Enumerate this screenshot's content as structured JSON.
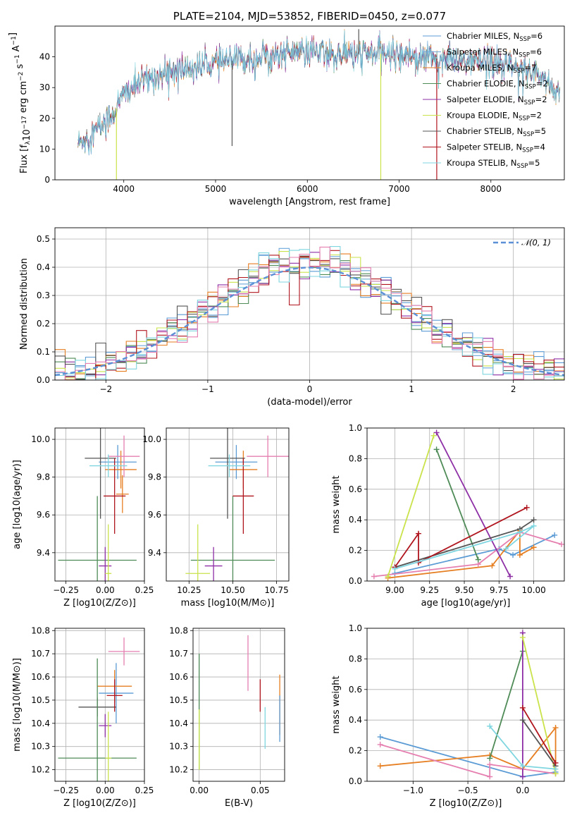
{
  "colors": {
    "chabrier_miles": "#5B9BD5",
    "salpeter_miles": "#6FA8DC",
    "kroupa_miles": "#E67E22",
    "chabrier_elodie": "#4E8B57",
    "salpeter_elodie": "#8E2FA6",
    "kroupa_elodie": "#C9E34B",
    "chabrier_stelib": "#555555",
    "salpeter_stelib": "#B0151E",
    "kroupa_stelib": "#7FD6E0",
    "pink": "#E57FB0",
    "normal": "#5B8FD6"
  },
  "chart_data": [
    {
      "id": "spectrum",
      "type": "line",
      "title": "PLATE=2104, MJD=53852, FIBERID=0450, z=0.077",
      "xlabel": "wavelength [Angstrom, rest frame]",
      "ylabel": "Flux [f_λ10^-17 erg cm^-2 s^-1 A^-1]",
      "xlim": [
        3250,
        8800
      ],
      "ylim": [
        0,
        50
      ],
      "xticks": [
        "4000",
        "5000",
        "6000",
        "7000",
        "8000"
      ],
      "yticks": [
        "0",
        "10",
        "20",
        "30",
        "40"
      ],
      "legend_position": "top-right",
      "legend": [
        {
          "label": "Chabrier MILES, N",
          "sub": "SSP",
          "val": "=6"
        },
        {
          "label": "Salpeter MILES, N",
          "sub": "SSP",
          "val": "=6"
        },
        {
          "label": "Kroupa MILES, N",
          "sub": "SSP",
          "val": "=7"
        },
        {
          "label": "Chabrier ELODIE, N",
          "sub": "SSP",
          "val": "=2"
        },
        {
          "label": "Salpeter ELODIE, N",
          "sub": "SSP",
          "val": "=2"
        },
        {
          "label": "Kroupa ELODIE, N",
          "sub": "SSP",
          "val": "=2"
        },
        {
          "label": "Chabrier STELIB, N",
          "sub": "SSP",
          "val": "=5"
        },
        {
          "label": "Salpeter STELIB, N",
          "sub": "SSP",
          "val": "=4"
        },
        {
          "label": "Kroupa STELIB, N",
          "sub": "SSP",
          "val": "=5"
        }
      ],
      "continuum": [
        [
          3500,
          12
        ],
        [
          3700,
          16
        ],
        [
          3900,
          22
        ],
        [
          4000,
          28
        ],
        [
          4200,
          32
        ],
        [
          4500,
          35
        ],
        [
          5000,
          38
        ],
        [
          5500,
          40
        ],
        [
          5900,
          42
        ],
        [
          6200,
          41
        ],
        [
          6500,
          41
        ],
        [
          7000,
          41
        ],
        [
          7300,
          40
        ],
        [
          7500,
          39
        ],
        [
          8000,
          38
        ],
        [
          8500,
          35
        ],
        [
          8750,
          28
        ]
      ],
      "features": [
        {
          "x": 3920,
          "y": 0
        },
        {
          "x": 5180,
          "y": 11
        },
        {
          "x": 6560,
          "y": 49
        },
        {
          "x": 6800,
          "y": 0
        },
        {
          "x": 7410,
          "y": 0
        }
      ]
    },
    {
      "id": "residuals",
      "type": "line",
      "xlabel": "(data-model)/error",
      "ylabel": "Normed distribution",
      "xlim": [
        -2.5,
        2.5
      ],
      "ylim": [
        0,
        0.54
      ],
      "xticks": [
        "−2",
        "−1",
        "0",
        "1",
        "2"
      ],
      "yticks": [
        "0.0",
        "0.1",
        "0.2",
        "0.3",
        "0.4",
        "0.5"
      ],
      "legend": "𝒩(0, 1)"
    },
    {
      "id": "age_vs_z",
      "type": "scatter",
      "xlabel": "Z [log10(Z/Z⊙)]",
      "ylabel": "age [log10(age/yr)]",
      "xlim": [
        -0.32,
        0.25
      ],
      "ylim": [
        9.25,
        10.06
      ],
      "xticks": [
        "−0.25",
        "0.00",
        "0.25"
      ],
      "yticks": [
        "9.4",
        "9.6",
        "9.8",
        "10.0"
      ],
      "points": [
        {
          "series": "chabrier_miles",
          "x": 0.08,
          "y": 9.88,
          "xerr": 0.12,
          "yerr": 0.09
        },
        {
          "series": "kroupa_miles",
          "x": 0.1,
          "y": 9.84,
          "xerr": 0.1,
          "yerr": 0.1
        },
        {
          "series": "kroupa_miles",
          "x": 0.11,
          "y": 9.71,
          "xerr": 0.04,
          "yerr": 0.1
        },
        {
          "series": "pink",
          "x": 0.12,
          "y": 9.91,
          "xerr": 0.1,
          "yerr": 0.11
        },
        {
          "series": "chabrier_elodie",
          "x": -0.05,
          "y": 9.36,
          "xerr": 0.25,
          "yerr": 0.34
        },
        {
          "series": "salpeter_elodie",
          "x": 0.0,
          "y": 9.33,
          "xerr": 0.04,
          "yerr": 0.1
        },
        {
          "series": "kroupa_elodie",
          "x": 0.02,
          "y": 9.29,
          "xerr": 0.02,
          "yerr": 0.26
        },
        {
          "series": "chabrier_stelib",
          "x": -0.03,
          "y": 9.9,
          "xerr": 0.1,
          "yerr": 0.32
        },
        {
          "series": "salpeter_stelib",
          "x": 0.06,
          "y": 9.7,
          "xerr": 0.07,
          "yerr": 0.2
        },
        {
          "series": "kroupa_stelib",
          "x": 0.02,
          "y": 9.86,
          "xerr": 0.12,
          "yerr": 0.06
        }
      ]
    },
    {
      "id": "age_vs_mass",
      "type": "scatter",
      "xlabel": "mass [log10(M/M⊙)]",
      "xlim": [
        10.12,
        10.82
      ],
      "ylim": [
        9.25,
        10.06
      ],
      "xticks": [
        "10.25",
        "10.50",
        "10.75"
      ],
      "yticks": [
        "9.4",
        "9.6",
        "9.8",
        "10.0"
      ],
      "points": [
        {
          "series": "chabrier_miles",
          "x": 10.52,
          "y": 9.88,
          "xerr": 0.12,
          "yerr": 0.09
        },
        {
          "series": "kroupa_miles",
          "x": 10.56,
          "y": 9.84,
          "xerr": 0.08,
          "yerr": 0.1
        },
        {
          "series": "pink",
          "x": 10.7,
          "y": 9.91,
          "xerr": 0.12,
          "yerr": 0.11
        },
        {
          "series": "chabrier_elodie",
          "x": 10.5,
          "y": 9.36,
          "xerr": 0.24,
          "yerr": 0.34
        },
        {
          "series": "salpeter_elodie",
          "x": 10.39,
          "y": 9.33,
          "xerr": 0.05,
          "yerr": 0.1
        },
        {
          "series": "kroupa_elodie",
          "x": 10.3,
          "y": 9.29,
          "xerr": 0.07,
          "yerr": 0.26
        },
        {
          "series": "chabrier_stelib",
          "x": 10.47,
          "y": 9.9,
          "xerr": 0.1,
          "yerr": 0.32
        },
        {
          "series": "salpeter_stelib",
          "x": 10.56,
          "y": 9.7,
          "xerr": 0.06,
          "yerr": 0.2
        },
        {
          "series": "kroupa_stelib",
          "x": 10.48,
          "y": 9.86,
          "xerr": 0.12,
          "yerr": 0.06
        }
      ]
    },
    {
      "id": "weight_vs_age",
      "type": "line",
      "xlabel": "age [log10(age/yr)]",
      "ylabel": "mass weight",
      "xlim": [
        8.8,
        10.22
      ],
      "ylim": [
        0,
        1.0
      ],
      "xticks": [
        "9.00",
        "9.25",
        "9.50",
        "9.75",
        "10.00"
      ],
      "yticks": [
        "0.0",
        "0.2",
        "0.4",
        "0.6",
        "0.8",
        "1.0"
      ],
      "series": [
        {
          "name": "chabrier_miles",
          "points": [
            [
              9.0,
              0.05
            ],
            [
              9.75,
              0.21
            ],
            [
              9.85,
              0.17
            ],
            [
              10.15,
              0.3
            ]
          ]
        },
        {
          "name": "kroupa_miles",
          "points": [
            [
              8.95,
              0.02
            ],
            [
              9.7,
              0.1
            ],
            [
              9.9,
              0.33
            ],
            [
              9.9,
              0.17
            ],
            [
              10.0,
              0.22
            ]
          ]
        },
        {
          "name": "pink",
          "points": [
            [
              8.85,
              0.03
            ],
            [
              9.6,
              0.11
            ],
            [
              9.9,
              0.32
            ],
            [
              10.2,
              0.24
            ]
          ]
        },
        {
          "name": "chabrier_elodie",
          "points": [
            [
              9.3,
              0.86
            ],
            [
              9.6,
              0.14
            ]
          ]
        },
        {
          "name": "salpeter_elodie",
          "points": [
            [
              9.3,
              0.97
            ],
            [
              9.83,
              0.03
            ]
          ]
        },
        {
          "name": "kroupa_elodie",
          "points": [
            [
              8.95,
              0.03
            ],
            [
              9.28,
              0.95
            ]
          ]
        },
        {
          "name": "chabrier_stelib",
          "points": [
            [
              9.0,
              0.09
            ],
            [
              9.9,
              0.34
            ],
            [
              10.0,
              0.4
            ]
          ]
        },
        {
          "name": "salpeter_stelib",
          "points": [
            [
              9.0,
              0.09
            ],
            [
              9.17,
              0.31
            ],
            [
              9.17,
              0.12
            ],
            [
              9.95,
              0.48
            ]
          ]
        },
        {
          "name": "kroupa_stelib",
          "points": [
            [
              9.0,
              0.08
            ],
            [
              9.9,
              0.32
            ],
            [
              10.0,
              0.36
            ],
            [
              9.8,
              0.21
            ]
          ]
        }
      ]
    },
    {
      "id": "mass_vs_z",
      "type": "scatter",
      "xlabel": "Z [log10(Z/Z⊙)]",
      "ylabel": "mass [log10(M/M⊙)]",
      "xlim": [
        -0.32,
        0.25
      ],
      "ylim": [
        10.15,
        10.81
      ],
      "xticks": [
        "−0.25",
        "0.00",
        "0.25"
      ],
      "yticks": [
        "10.2",
        "10.3",
        "10.4",
        "10.5",
        "10.6",
        "10.7",
        "10.8"
      ],
      "points": [
        {
          "series": "pink",
          "x": 0.12,
          "y": 10.71,
          "xerr": 0.1,
          "yerr": 0.06
        },
        {
          "series": "chabrier_miles",
          "x": 0.07,
          "y": 10.53,
          "xerr": 0.11,
          "yerr": 0.13
        },
        {
          "series": "kroupa_miles",
          "x": 0.06,
          "y": 10.56,
          "xerr": 0.11,
          "yerr": 0.07
        },
        {
          "series": "chabrier_stelib",
          "x": -0.05,
          "y": 10.47,
          "xerr": 0.12,
          "yerr": 0.04
        },
        {
          "series": "salpeter_stelib",
          "x": 0.06,
          "y": 10.52,
          "xerr": 0.05,
          "yerr": 0.07
        },
        {
          "series": "salpeter_elodie",
          "x": 0.0,
          "y": 10.39,
          "xerr": 0.04,
          "yerr": 0.05
        },
        {
          "series": "chabrier_elodie",
          "x": -0.05,
          "y": 10.25,
          "xerr": 0.25,
          "yerr": 0.43
        },
        {
          "series": "kroupa_elodie",
          "x": 0.02,
          "y": 10.25,
          "xerr": 0.02,
          "yerr": 0.2
        }
      ]
    },
    {
      "id": "mass_vs_ebv",
      "type": "scatter",
      "xlabel": "E(B-V)",
      "xlim": [
        -0.005,
        0.07
      ],
      "ylim": [
        10.15,
        10.81
      ],
      "xticks": [
        "0.00",
        "0.05"
      ],
      "yticks": [
        "10.2",
        "10.3",
        "10.4",
        "10.5",
        "10.6",
        "10.7",
        "10.8"
      ],
      "points": [
        {
          "series": "pink",
          "x": 0.04,
          "y": 10.66,
          "yerr": 0.12
        },
        {
          "series": "salpeter_stelib",
          "x": 0.05,
          "y": 10.52,
          "yerr": 0.07
        },
        {
          "series": "kroupa_miles",
          "x": 0.066,
          "y": 10.48,
          "yerr": 0.13
        },
        {
          "series": "chabrier_miles",
          "x": 0.066,
          "y": 10.42,
          "yerr": 0.1
        },
        {
          "series": "kroupa_stelib",
          "x": 0.054,
          "y": 10.38,
          "yerr": 0.09
        },
        {
          "series": "chabrier_elodie",
          "x": 0.0,
          "y": 10.45,
          "yerr": 0.25
        },
        {
          "series": "kroupa_elodie",
          "x": 0.0,
          "y": 10.33,
          "yerr": 0.13
        }
      ]
    },
    {
      "id": "weight_vs_z",
      "type": "line",
      "xlabel": "Z [log10(Z/Z⊙)]",
      "ylabel": "mass weight",
      "xlim": [
        -1.42,
        0.38
      ],
      "ylim": [
        0,
        1.0
      ],
      "xticks": [
        "−1.0",
        "−0.5",
        "0.0"
      ],
      "yticks": [
        "0.0",
        "0.2",
        "0.4",
        "0.6",
        "0.8",
        "1.0"
      ],
      "series": [
        {
          "name": "chabrier_miles",
          "points": [
            [
              -1.3,
              0.29
            ],
            [
              0.0,
              0.03
            ],
            [
              0.3,
              0.06
            ]
          ]
        },
        {
          "name": "kroupa_miles",
          "points": [
            [
              -1.3,
              0.1
            ],
            [
              -0.3,
              0.17
            ],
            [
              0.0,
              0.08
            ],
            [
              0.3,
              0.35
            ],
            [
              0.3,
              0.05
            ]
          ]
        },
        {
          "name": "pink",
          "points": [
            [
              -1.3,
              0.24
            ],
            [
              -0.3,
              0.03
            ],
            [
              -0.3,
              0.11
            ],
            [
              0.3,
              0.05
            ]
          ]
        },
        {
          "name": "chabrier_elodie",
          "points": [
            [
              -0.3,
              0.15
            ],
            [
              0.0,
              0.85
            ]
          ]
        },
        {
          "name": "salpeter_elodie",
          "points": [
            [
              0.0,
              0.03
            ],
            [
              0.0,
              0.97
            ]
          ]
        },
        {
          "name": "kroupa_elodie",
          "points": [
            [
              0.0,
              0.94
            ],
            [
              0.3,
              0.05
            ]
          ]
        },
        {
          "name": "chabrier_stelib",
          "points": [
            [
              0.0,
              0.4
            ],
            [
              0.3,
              0.1
            ]
          ]
        },
        {
          "name": "salpeter_stelib",
          "points": [
            [
              0.0,
              0.48
            ],
            [
              0.3,
              0.12
            ]
          ]
        },
        {
          "name": "kroupa_stelib",
          "points": [
            [
              -0.3,
              0.36
            ],
            [
              0.0,
              0.1
            ],
            [
              0.3,
              0.08
            ]
          ]
        }
      ]
    }
  ]
}
